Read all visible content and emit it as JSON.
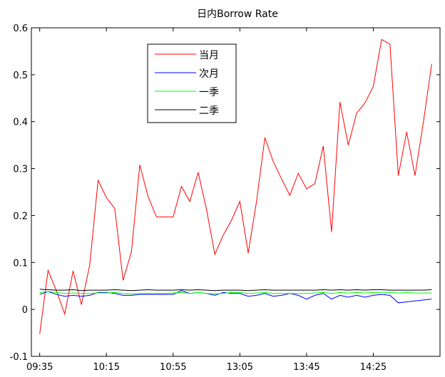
{
  "chart_data": {
    "type": "line",
    "title": "日内Borrow Rate",
    "xlabel": "",
    "ylabel": "",
    "ylim": [
      -0.1,
      0.6
    ],
    "yticks": [
      -0.1,
      0,
      0.1,
      0.2,
      0.3,
      0.4,
      0.5,
      0.6
    ],
    "ytick_labels": [
      "-0.1",
      "0",
      "0.1",
      "0.2",
      "0.3",
      "0.4",
      "0.5",
      "0.6"
    ],
    "xticks": [
      {
        "x": 0,
        "label": "09:35"
      },
      {
        "x": 8,
        "label": "10:15"
      },
      {
        "x": 16,
        "label": "10:55"
      },
      {
        "x": 24,
        "label": "13:05"
      },
      {
        "x": 32,
        "label": "13:45"
      },
      {
        "x": 40,
        "label": "14:25"
      }
    ],
    "xlim": [
      -1,
      48
    ],
    "grid": false,
    "legend_position": "top-center",
    "series": [
      {
        "name": "当月",
        "color": "#ff0000",
        "values": [
          -0.052,
          0.083,
          0.04,
          -0.01,
          0.082,
          0.01,
          0.095,
          0.275,
          0.238,
          0.215,
          0.062,
          0.123,
          0.308,
          0.24,
          0.197,
          0.197,
          0.197,
          0.262,
          0.23,
          0.292,
          0.213,
          0.117,
          0.158,
          0.19,
          0.23,
          0.12,
          0.23,
          0.366,
          0.315,
          0.278,
          0.243,
          0.29,
          0.257,
          0.268,
          0.348,
          0.165,
          0.442,
          0.35,
          0.418,
          0.44,
          0.475,
          0.575,
          0.565,
          0.285,
          0.378,
          0.285,
          0.398,
          0.523
        ]
      },
      {
        "name": "次月",
        "color": "#0000ff",
        "values": [
          0.032,
          0.038,
          0.032,
          0.028,
          0.03,
          0.028,
          0.03,
          0.036,
          0.036,
          0.034,
          0.03,
          0.03,
          0.032,
          0.032,
          0.032,
          0.032,
          0.032,
          0.04,
          0.034,
          0.036,
          0.034,
          0.03,
          0.036,
          0.034,
          0.034,
          0.028,
          0.03,
          0.034,
          0.028,
          0.03,
          0.034,
          0.03,
          0.022,
          0.03,
          0.034,
          0.022,
          0.03,
          0.026,
          0.03,
          0.026,
          0.03,
          0.032,
          0.03,
          0.014,
          0.016,
          0.018,
          0.02,
          0.022
        ]
      },
      {
        "name": "一季",
        "color": "#00ff00",
        "values": [
          0.036,
          0.038,
          0.036,
          0.034,
          0.035,
          0.034,
          0.034,
          0.035,
          0.035,
          0.036,
          0.034,
          0.033,
          0.034,
          0.034,
          0.034,
          0.034,
          0.035,
          0.036,
          0.034,
          0.036,
          0.034,
          0.033,
          0.034,
          0.036,
          0.036,
          0.034,
          0.035,
          0.036,
          0.034,
          0.034,
          0.034,
          0.034,
          0.034,
          0.035,
          0.036,
          0.034,
          0.036,
          0.035,
          0.036,
          0.035,
          0.036,
          0.036,
          0.036,
          0.035,
          0.036,
          0.035,
          0.035,
          0.035
        ]
      },
      {
        "name": "二季",
        "color": "#000000",
        "values": [
          0.043,
          0.042,
          0.041,
          0.041,
          0.042,
          0.04,
          0.041,
          0.041,
          0.041,
          0.042,
          0.041,
          0.04,
          0.041,
          0.042,
          0.041,
          0.041,
          0.041,
          0.042,
          0.041,
          0.042,
          0.041,
          0.04,
          0.041,
          0.041,
          0.041,
          0.04,
          0.041,
          0.042,
          0.041,
          0.041,
          0.041,
          0.041,
          0.041,
          0.041,
          0.042,
          0.041,
          0.042,
          0.041,
          0.042,
          0.041,
          0.042,
          0.042,
          0.041,
          0.041,
          0.041,
          0.041,
          0.041,
          0.042
        ]
      }
    ]
  }
}
